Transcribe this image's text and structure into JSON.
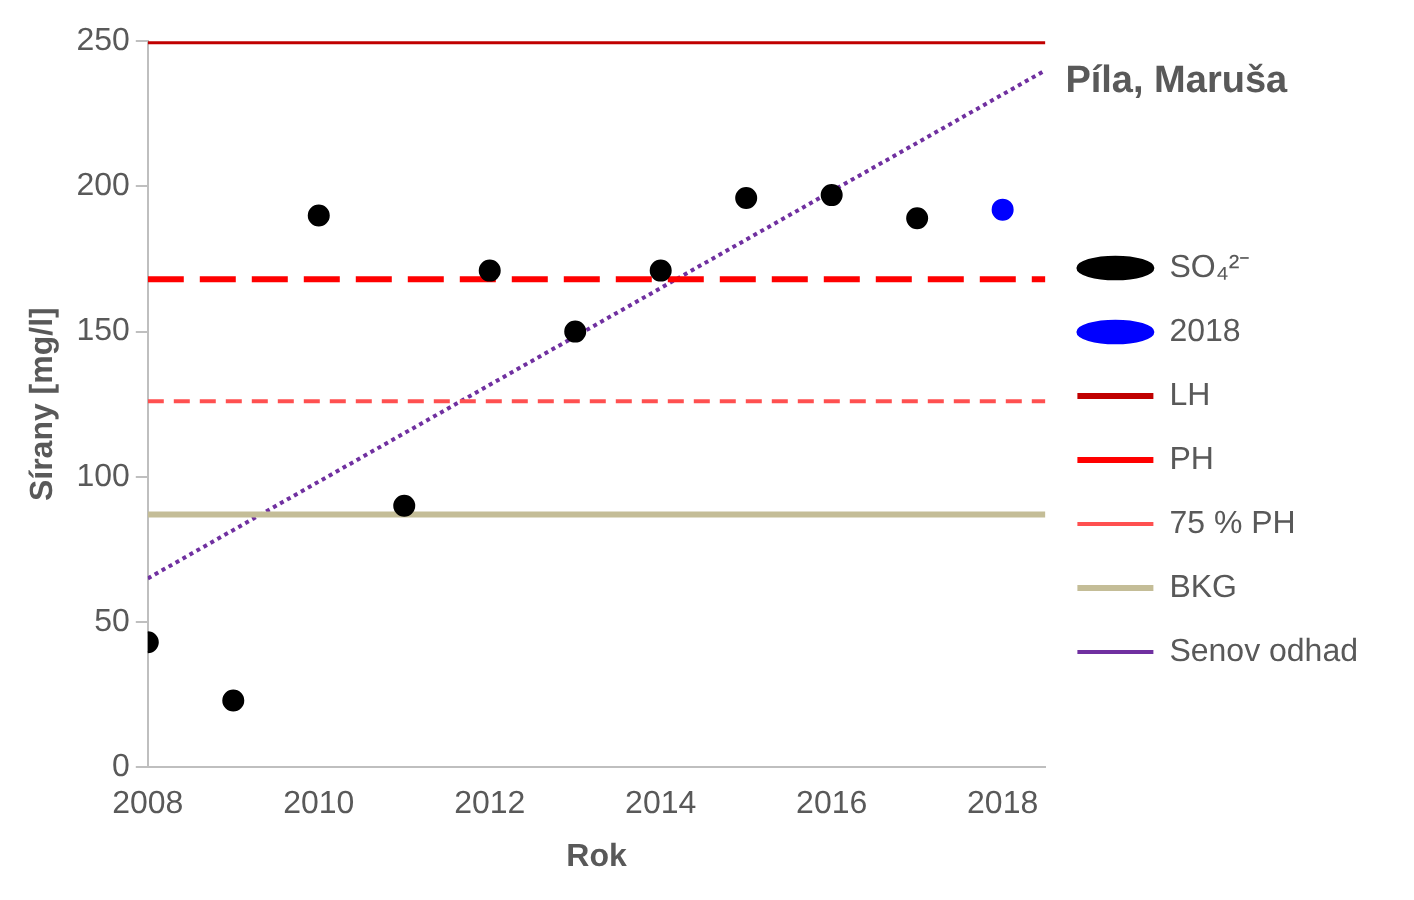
{
  "chart_data": {
    "type": "scatter",
    "title": "Píla, Maruša",
    "xlabel": "Rok",
    "ylabel": "Sírany [mg/l]",
    "x": [
      2008,
      2009,
      2010,
      2011,
      2012,
      2013,
      2014,
      2015,
      2016,
      2017
    ],
    "marker": "circle",
    "legend": "right",
    "series": [
      {
        "name": "SO₄²⁻",
        "color": "#000000",
        "values": [
          43,
          23,
          190,
          90,
          171,
          150,
          171,
          196,
          197,
          189
        ]
      },
      {
        "name": "2018",
        "color": "#0000ff",
        "x": [
          2018
        ],
        "values": [
          192
        ]
      },
      {
        "name": "Senov odhad",
        "type": "line",
        "color": "#7030a0",
        "line_style": "dotted",
        "marker": "none",
        "x": [
          2008,
          2018.5
        ],
        "values": [
          65,
          240
        ]
      }
    ],
    "ref_lines": [
      {
        "axis": "y",
        "value": 250,
        "label": "LH",
        "color": "#c00000",
        "line_style": "solid"
      },
      {
        "axis": "y",
        "value": 168,
        "label": "PH",
        "color": "#ff0000",
        "line_style": "dashed"
      },
      {
        "axis": "y",
        "value": 126,
        "label": "75 % PH",
        "color": "#ff5050",
        "line_style": "dashed"
      },
      {
        "axis": "y",
        "value": 87,
        "label": "BKG",
        "color": "#c4bd97",
        "line_style": "solid"
      }
    ],
    "xlim": [
      2008,
      2018.5
    ],
    "xticks": [
      2008,
      2010,
      2012,
      2014,
      2016,
      2018
    ],
    "ylim": [
      0,
      250
    ],
    "yticks": [
      0,
      50,
      100,
      150,
      200,
      250
    ]
  }
}
